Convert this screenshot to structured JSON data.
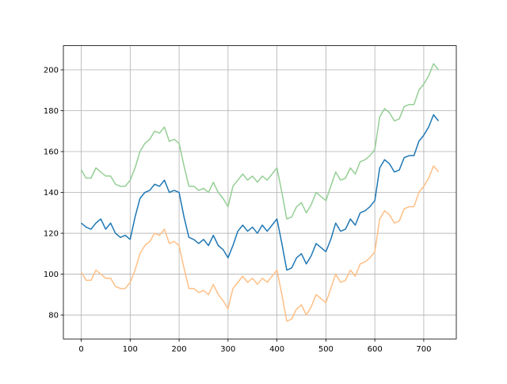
{
  "chart_data": {
    "type": "line",
    "x": [
      0,
      10,
      20,
      30,
      40,
      50,
      60,
      70,
      80,
      90,
      100,
      110,
      120,
      130,
      140,
      150,
      160,
      170,
      180,
      190,
      200,
      210,
      220,
      230,
      240,
      250,
      260,
      270,
      280,
      290,
      300,
      310,
      320,
      330,
      340,
      350,
      360,
      370,
      380,
      390,
      400,
      410,
      420,
      430,
      440,
      450,
      460,
      470,
      480,
      490,
      500,
      510,
      520,
      530,
      540,
      550,
      560,
      570,
      580,
      590,
      600,
      610,
      620,
      630,
      640,
      650,
      660,
      670,
      680,
      690,
      700,
      710,
      720,
      730
    ],
    "series": [
      {
        "color": "#95cf95",
        "values": [
          151,
          147,
          147,
          152,
          150,
          148,
          148,
          144,
          143,
          143,
          146,
          152,
          160,
          164,
          166,
          170,
          169,
          172,
          165,
          166,
          164,
          153,
          143,
          143,
          141,
          142,
          140,
          145,
          140,
          137,
          133,
          143,
          146,
          149,
          146,
          148,
          145,
          148,
          146,
          149,
          152,
          140,
          127,
          128,
          133,
          135,
          130,
          134,
          140,
          138,
          136,
          143,
          150,
          146,
          147,
          152,
          149,
          155,
          156,
          158,
          161,
          177,
          181,
          179,
          175,
          176,
          182,
          183,
          183,
          190,
          193,
          197,
          203,
          200
        ]
      },
      {
        "color": "#ffbf86",
        "values": [
          101,
          97,
          97,
          102,
          100,
          98,
          98,
          94,
          93,
          93,
          96,
          102,
          110,
          114,
          116,
          120,
          119,
          122,
          115,
          116,
          114,
          103,
          93,
          93,
          91,
          92,
          90,
          95,
          90,
          87,
          83,
          93,
          96,
          99,
          96,
          98,
          95,
          98,
          96,
          99,
          102,
          90,
          77,
          78,
          83,
          85,
          80,
          84,
          90,
          88,
          86,
          93,
          100,
          96,
          97,
          102,
          99,
          105,
          106,
          108,
          111,
          127,
          131,
          129,
          125,
          126,
          132,
          133,
          133,
          140,
          143,
          147,
          153,
          150
        ]
      },
      {
        "color": "#1f77b4",
        "values": [
          125,
          123,
          122,
          125,
          127,
          122,
          125,
          120,
          118,
          119,
          117,
          128,
          137,
          140,
          141,
          144,
          143,
          146,
          140,
          141,
          140,
          128,
          118,
          117,
          115,
          117,
          114,
          119,
          114,
          112,
          108,
          114,
          121,
          124,
          121,
          123,
          120,
          124,
          121,
          124,
          127,
          115,
          102,
          103,
          108,
          110,
          105,
          109,
          115,
          113,
          111,
          117,
          125,
          121,
          122,
          127,
          124,
          130,
          131,
          133,
          136,
          152,
          156,
          154,
          150,
          151,
          157,
          158,
          158,
          165,
          168,
          172,
          178,
          175
        ]
      }
    ],
    "xlim": [
      -36.5,
      766.5
    ],
    "ylim": [
      68.3,
      211.8
    ],
    "xticks": [
      0,
      100,
      200,
      300,
      400,
      500,
      600,
      700
    ],
    "yticks": [
      80,
      100,
      120,
      140,
      160,
      180,
      200
    ],
    "grid": true
  }
}
